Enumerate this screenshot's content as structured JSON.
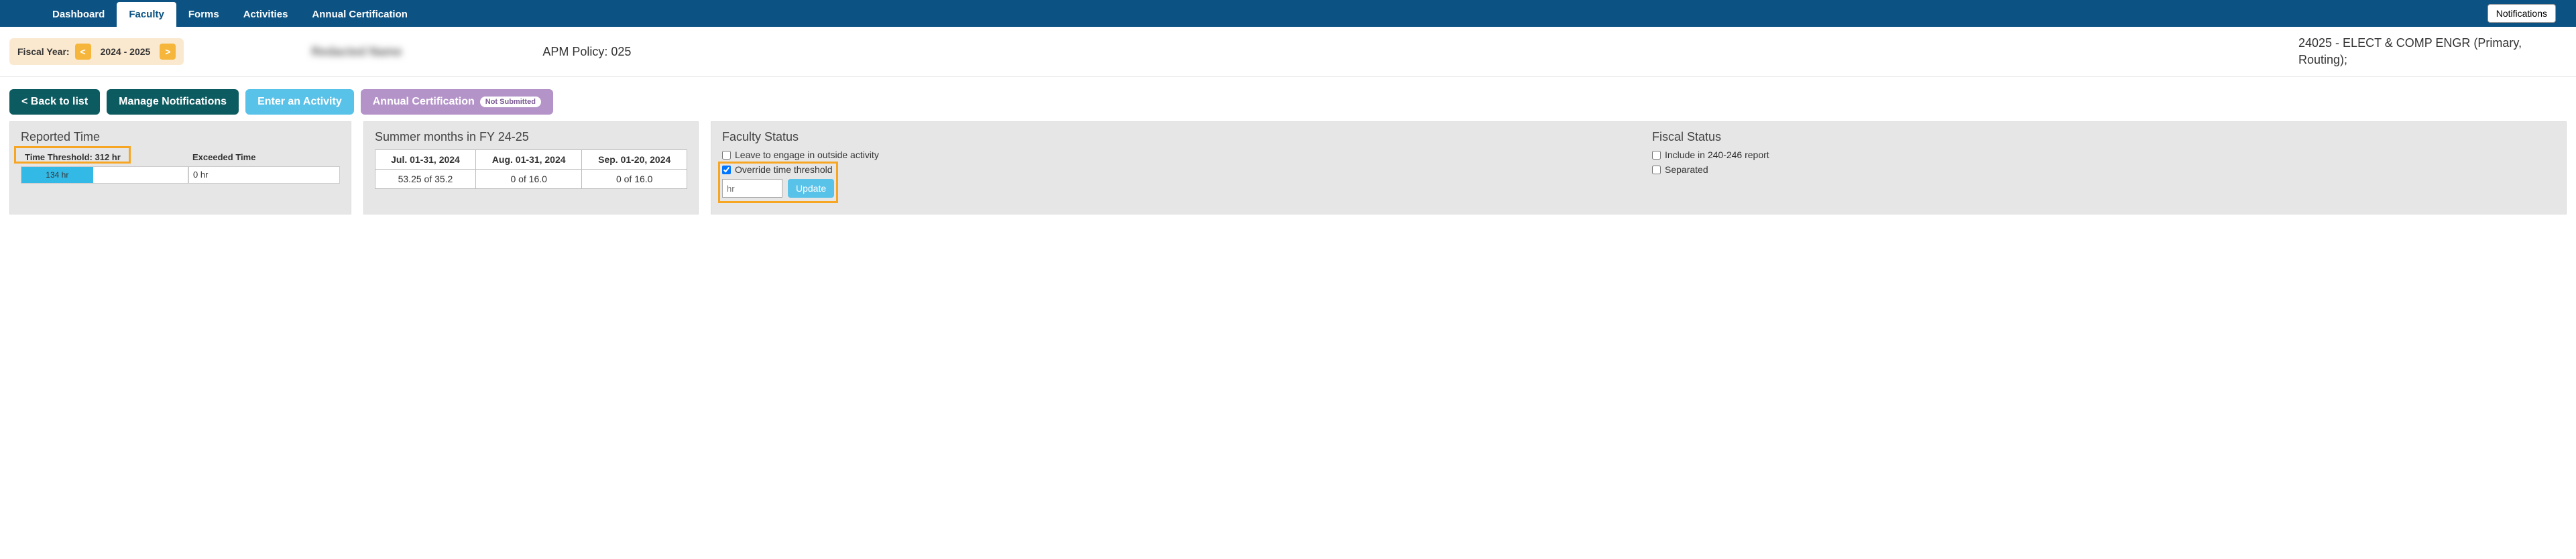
{
  "nav": {
    "tabs": [
      "Dashboard",
      "Faculty",
      "Forms",
      "Activities",
      "Annual Certification"
    ],
    "active_index": 1,
    "notifications_label": "Notifications"
  },
  "info": {
    "fiscal_year_label": "Fiscal Year:",
    "fiscal_year_value": "2024 - 2025",
    "redacted_name": "Redacted Name",
    "apm_policy": "APM Policy: 025",
    "department": "24025 - ELECT & COMP ENGR (Primary, Routing);"
  },
  "actions": {
    "back": "< Back to list",
    "manage": "Manage Notifications",
    "enter": "Enter an Activity",
    "annual": "Annual Certification",
    "annual_badge": "Not Submitted"
  },
  "reported_time": {
    "title": "Reported Time",
    "threshold_label": "Time Threshold: 312 hr",
    "exceeded_label": "Exceeded Time",
    "used_hours_label": "134 hr",
    "used_hours_pct": 43,
    "exceeded_value": "0 hr"
  },
  "summer": {
    "title": "Summer months in FY 24-25",
    "headers": [
      "Jul. 01-31, 2024",
      "Aug. 01-31, 2024",
      "Sep. 01-20, 2024"
    ],
    "values": [
      "53.25 of 35.2",
      "0 of 16.0",
      "0 of 16.0"
    ]
  },
  "faculty_status": {
    "title": "Faculty Status",
    "leave_label": "Leave to engage in outside activity",
    "leave_checked": false,
    "override_label": "Override time threshold",
    "override_checked": true,
    "hr_placeholder": "hr",
    "update_label": "Update"
  },
  "fiscal_status": {
    "title": "Fiscal Status",
    "include_label": "Include in 240-246 report",
    "include_checked": false,
    "separated_label": "Separated",
    "separated_checked": false
  },
  "colors": {
    "topbar_bg": "#0c5282",
    "fy_bg": "#fbe9cf",
    "fy_arrow_bg": "#f6b63b",
    "btn_teal": "#0c5b60",
    "btn_light": "#59c2e8",
    "btn_purple": "#b493c8",
    "panel_bg": "#e6e6e6",
    "highlight_border": "#f6a623",
    "bar_fill": "#33b9e6"
  }
}
